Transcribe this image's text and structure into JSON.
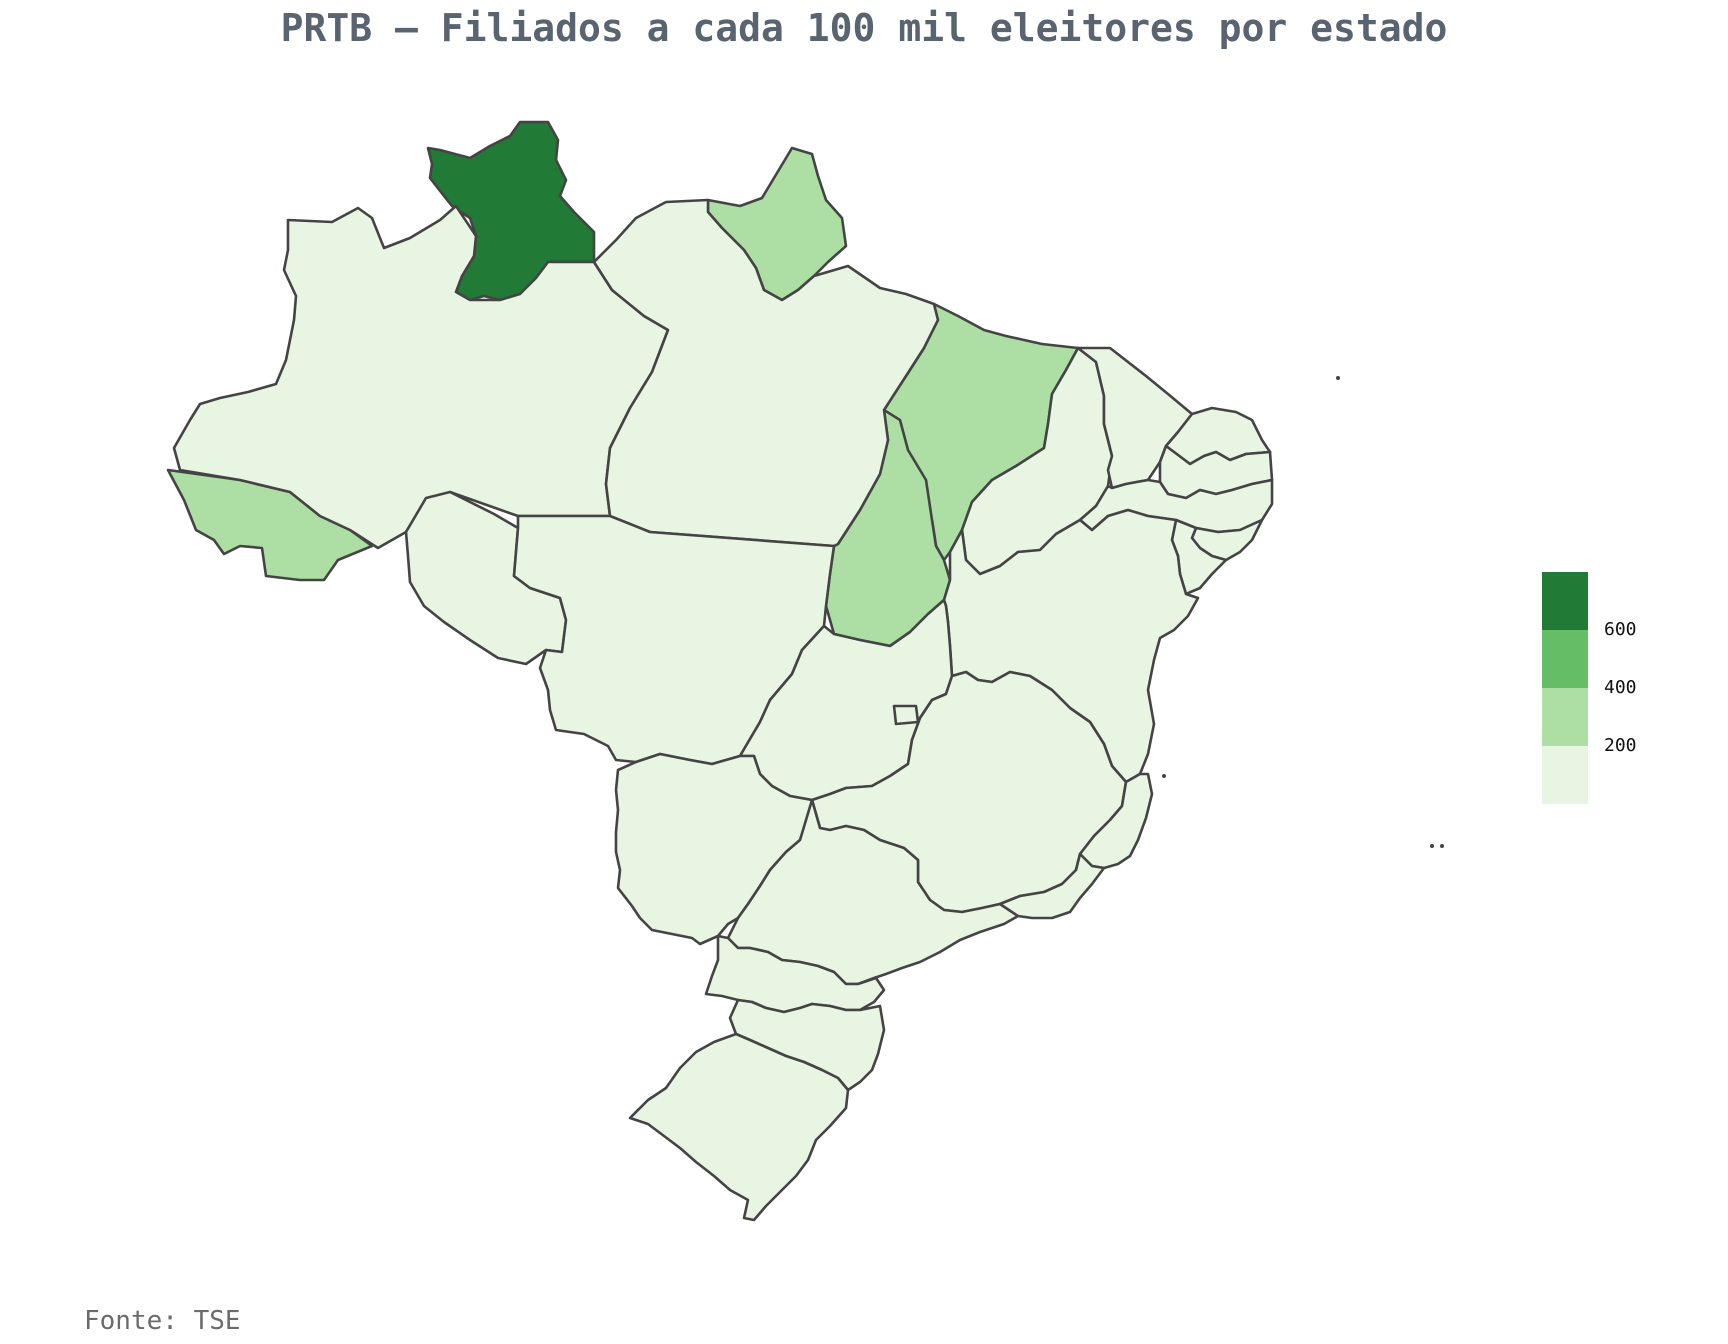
{
  "title": "PRTB – Filiados a cada 100 mil eleitores por estado",
  "source": "Fonte: TSE",
  "colors": {
    "bin_0_200": "#e8f5e3",
    "bin_200_400": "#addfa5",
    "bin_400_600": "#65bd66",
    "bin_600_plus": "#217a36",
    "border": "#444444"
  },
  "legend": {
    "ticks": [
      "600",
      "400",
      "200"
    ]
  },
  "chart_data": {
    "type": "choropleth",
    "title": "PRTB – Filiados a cada 100 mil eleitores por estado",
    "scale_bins": [
      [
        0,
        200
      ],
      [
        200,
        400
      ],
      [
        400,
        600
      ],
      [
        600,
        800
      ]
    ],
    "states": [
      {
        "id": "RR",
        "bin": "bin_600_plus"
      },
      {
        "id": "AP",
        "bin": "bin_200_400"
      },
      {
        "id": "AC",
        "bin": "bin_200_400"
      },
      {
        "id": "MA",
        "bin": "bin_200_400"
      },
      {
        "id": "TO",
        "bin": "bin_200_400"
      },
      {
        "id": "AM",
        "bin": "bin_0_200"
      },
      {
        "id": "PA",
        "bin": "bin_0_200"
      },
      {
        "id": "RO",
        "bin": "bin_0_200"
      },
      {
        "id": "MT",
        "bin": "bin_0_200"
      },
      {
        "id": "PI",
        "bin": "bin_0_200"
      },
      {
        "id": "CE",
        "bin": "bin_0_200"
      },
      {
        "id": "RN",
        "bin": "bin_0_200"
      },
      {
        "id": "PB",
        "bin": "bin_0_200"
      },
      {
        "id": "PE",
        "bin": "bin_0_200"
      },
      {
        "id": "AL",
        "bin": "bin_0_200"
      },
      {
        "id": "SE",
        "bin": "bin_0_200"
      },
      {
        "id": "BA",
        "bin": "bin_0_200"
      },
      {
        "id": "GO",
        "bin": "bin_0_200"
      },
      {
        "id": "DF",
        "bin": "bin_0_200"
      },
      {
        "id": "MG",
        "bin": "bin_0_200"
      },
      {
        "id": "ES",
        "bin": "bin_0_200"
      },
      {
        "id": "MS",
        "bin": "bin_0_200"
      },
      {
        "id": "SP",
        "bin": "bin_0_200"
      },
      {
        "id": "RJ",
        "bin": "bin_0_200"
      },
      {
        "id": "PR",
        "bin": "bin_0_200"
      },
      {
        "id": "SC",
        "bin": "bin_0_200"
      },
      {
        "id": "RS",
        "bin": "bin_0_200"
      }
    ]
  }
}
